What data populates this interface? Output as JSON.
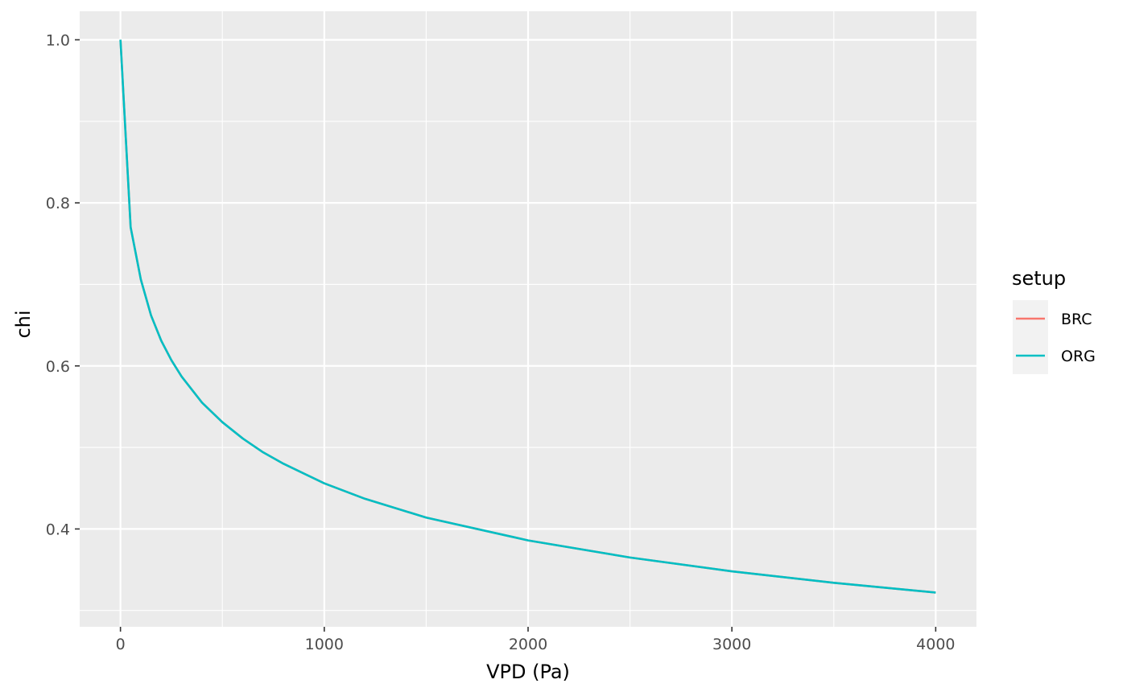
{
  "chart_data": {
    "type": "line",
    "xlabel": "VPD (Pa)",
    "ylabel": "chi",
    "xlim": [
      -200,
      4200
    ],
    "ylim": [
      0.28,
      1.035
    ],
    "x_ticks": [
      0,
      1000,
      2000,
      3000,
      4000
    ],
    "x_tick_labels": [
      "0",
      "1000",
      "2000",
      "3000",
      "4000"
    ],
    "x_minor_ticks": [
      500,
      1500,
      2500,
      3500
    ],
    "y_ticks": [
      0.4,
      0.6,
      0.8,
      1.0
    ],
    "y_tick_labels": [
      "0.4",
      "0.6",
      "0.8",
      "1.0"
    ],
    "y_minor_ticks": [
      0.3,
      0.5,
      0.7,
      0.9
    ],
    "grid": true,
    "panel_background": "#ebebeb",
    "grid_color": "#ffffff",
    "legend": {
      "title": "setup",
      "position": "right",
      "entries": [
        {
          "label": "BRC",
          "color": "#f8766d"
        },
        {
          "label": "ORG",
          "color": "#00bfc4"
        }
      ]
    },
    "series": [
      {
        "name": "BRC",
        "color": "#f8766d",
        "x": [
          0,
          50,
          100,
          150,
          200,
          250,
          300,
          400,
          500,
          600,
          700,
          800,
          1000,
          1200,
          1500,
          2000,
          2500,
          3000,
          3500,
          4000
        ],
        "y": [
          1.0,
          0.77,
          0.706,
          0.662,
          0.631,
          0.607,
          0.587,
          0.555,
          0.531,
          0.511,
          0.494,
          0.48,
          0.456,
          0.437,
          0.414,
          0.386,
          0.365,
          0.348,
          0.334,
          0.322
        ]
      },
      {
        "name": "ORG",
        "color": "#00bfc4",
        "x": [
          0,
          50,
          100,
          150,
          200,
          250,
          300,
          400,
          500,
          600,
          700,
          800,
          1000,
          1200,
          1500,
          2000,
          2500,
          3000,
          3500,
          4000
        ],
        "y": [
          1.0,
          0.77,
          0.706,
          0.662,
          0.631,
          0.607,
          0.587,
          0.555,
          0.531,
          0.511,
          0.494,
          0.48,
          0.456,
          0.437,
          0.414,
          0.386,
          0.365,
          0.348,
          0.334,
          0.322
        ]
      }
    ]
  }
}
